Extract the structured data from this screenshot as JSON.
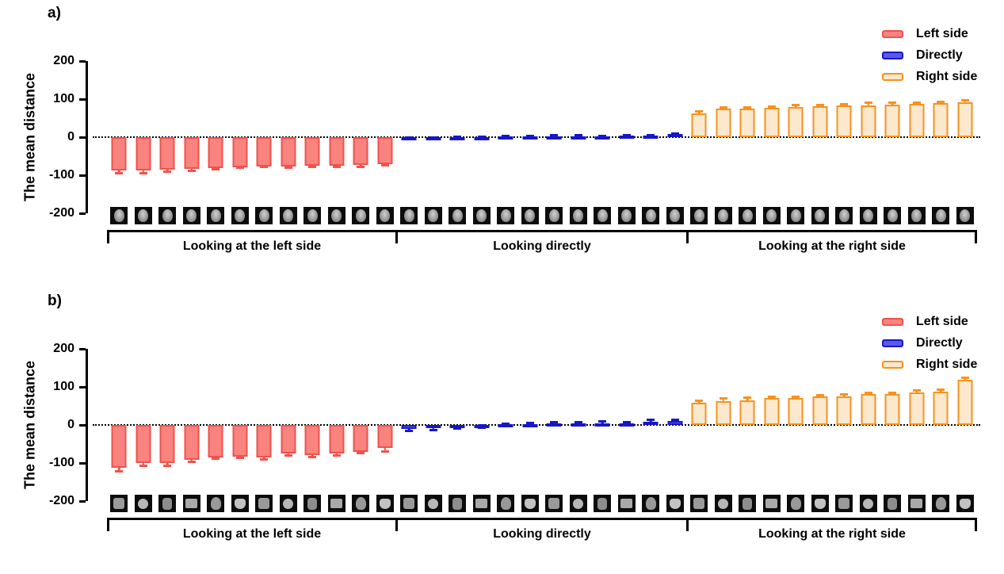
{
  "colors": {
    "left_fill": "#F9837E",
    "left_border": "#F0524C",
    "direct_fill": "#5A5AE6",
    "direct_border": "#1717C6",
    "right_fill": "#FCE8CD",
    "right_border": "#F6921E",
    "axis": "#000000",
    "thumbnail_bg": "#0C0C0C"
  },
  "legend": {
    "items": [
      {
        "key": "left",
        "label": "Left side"
      },
      {
        "key": "direct",
        "label": "Directly"
      },
      {
        "key": "right",
        "label": "Right side"
      }
    ]
  },
  "chart_data": [
    {
      "type": "bar",
      "panel_label": "a)",
      "ylabel": "The mean distance",
      "ylim": [
        -200,
        200
      ],
      "yticks": [
        200,
        100,
        0,
        -100,
        -200
      ],
      "zero_line": "dotted",
      "legend_position": "top-right",
      "x_thumbnails": "36 grayscale photographic face thumbnails, one under each bar",
      "thumbnail_icon": "grayscale-face-photo-icon",
      "thumbnail_style": "photo",
      "groups": [
        {
          "key": "left",
          "series": "Left side",
          "label": "Looking at the left side",
          "values": [
            -87,
            -87,
            -85,
            -84,
            -81,
            -79,
            -77,
            -78,
            -75,
            -75,
            -73,
            -70
          ],
          "errors": [
            10,
            10,
            8,
            7,
            6,
            5,
            5,
            5,
            6,
            6,
            9,
            8
          ]
        },
        {
          "key": "direct",
          "series": "Directly",
          "label": "Looking directly",
          "values": [
            -3,
            -3,
            -2,
            -1,
            2,
            2,
            3,
            3,
            3,
            4,
            5,
            8
          ],
          "errors": [
            1,
            1,
            1,
            1,
            1,
            1,
            1,
            1,
            2,
            2,
            4,
            5
          ]
        },
        {
          "key": "right",
          "series": "Right side",
          "label": "Looking at the right side",
          "values": [
            62,
            75,
            75,
            78,
            79,
            81,
            83,
            84,
            86,
            88,
            90,
            92
          ],
          "errors": [
            9,
            7,
            7,
            6,
            8,
            7,
            6,
            9,
            7,
            6,
            6,
            8
          ]
        }
      ]
    },
    {
      "type": "bar",
      "panel_label": "b)",
      "ylabel": "The mean distance",
      "ylim": [
        -200,
        200
      ],
      "yticks": [
        200,
        100,
        0,
        -100,
        -200
      ],
      "zero_line": "dotted",
      "legend_position": "top-right",
      "x_thumbnails": "36 cartoon/schematic face thumbnails, one under each bar",
      "thumbnail_icon": "cartoon-face-icon",
      "thumbnail_style": "cartoon",
      "groups": [
        {
          "key": "left",
          "series": "Left side",
          "label": "Looking at the left side",
          "values": [
            -113,
            -101,
            -100,
            -92,
            -85,
            -83,
            -85,
            -76,
            -80,
            -74,
            -70,
            -60
          ],
          "errors": [
            12,
            9,
            10,
            8,
            7,
            7,
            8,
            8,
            8,
            9,
            8,
            13
          ]
        },
        {
          "key": "direct",
          "series": "Directly",
          "label": "Looking directly",
          "values": [
            -11,
            -9,
            -7,
            -4,
            2,
            3,
            4,
            4,
            5,
            5,
            8,
            11
          ],
          "errors": [
            8,
            7,
            6,
            6,
            5,
            6,
            6,
            6,
            7,
            6,
            8,
            6
          ]
        },
        {
          "key": "right",
          "series": "Right side",
          "label": "Looking at the right side",
          "values": [
            58,
            62,
            65,
            70,
            70,
            74,
            76,
            82,
            81,
            86,
            88,
            118
          ],
          "errors": [
            9,
            11,
            9,
            7,
            7,
            8,
            7,
            6,
            7,
            7,
            7,
            9
          ]
        }
      ]
    }
  ]
}
